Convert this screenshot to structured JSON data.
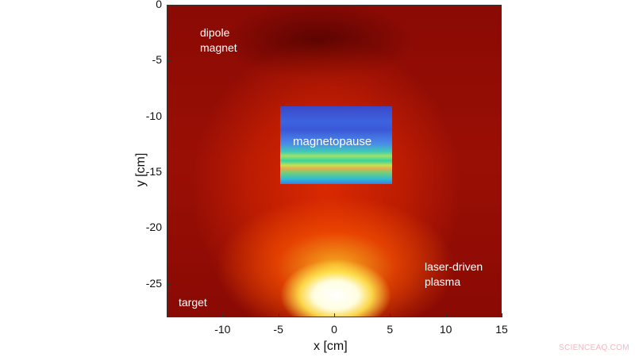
{
  "chart_data": {
    "type": "heatmap",
    "xlabel": "x [cm]",
    "ylabel": "y [cm]",
    "xlim": [
      -15,
      15
    ],
    "ylim": [
      -28,
      0
    ],
    "x_ticks": [
      "-10",
      "-5",
      "0",
      "5",
      "10",
      "15"
    ],
    "x_tick_values": [
      -10,
      -5,
      0,
      5,
      10,
      15
    ],
    "y_ticks": [
      "0",
      "-5",
      "-10",
      "-15",
      "-20",
      "-25"
    ],
    "y_tick_values": [
      0,
      -5,
      -10,
      -15,
      -20,
      -25
    ],
    "colormap": "hot",
    "inset": {
      "label": "magnetopause",
      "colormap": "jet",
      "x_range": [
        -5,
        5
      ],
      "y_range": [
        -16,
        -9
      ]
    },
    "annotations": [
      "dipole magnet",
      "laser-driven plasma",
      "target"
    ],
    "annotation_lines": {
      "dipole": [
        "dipole",
        "magnet"
      ],
      "plasma": [
        "laser-driven",
        "plasma"
      ],
      "target": "target"
    }
  },
  "watermark": "SCIENCEAQ.COM"
}
